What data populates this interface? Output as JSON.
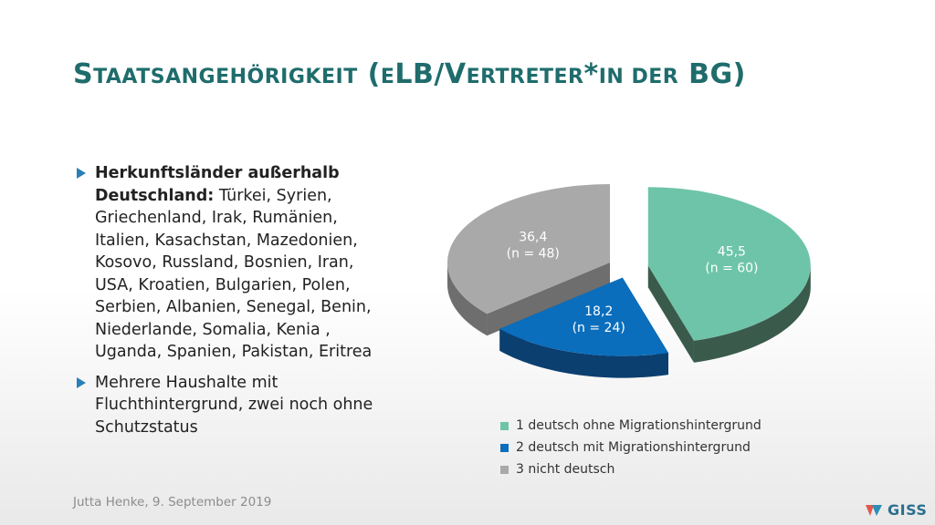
{
  "slide": {
    "title_parts": [
      {
        "text": "S",
        "small": false
      },
      {
        "text": "TAATSANGEHÖRIGKEIT",
        "small": true
      },
      {
        "text": " (",
        "small": false
      },
      {
        "text": "E",
        "small": true
      },
      {
        "text": "LB/V",
        "small": false
      },
      {
        "text": "ERTRETER",
        "small": true
      },
      {
        "text": "*",
        "small": false
      },
      {
        "text": "IN DER",
        "small": true
      },
      {
        "text": " BG)",
        "small": false
      }
    ],
    "bullets": [
      {
        "bold": "Herkunftsländer außerhalb Deutschland:",
        "text": " Türkei, Syrien, Griechenland, Irak, Rumänien, Italien, Kasachstan, Mazedonien, Kosovo, Russland, Bosnien, Iran, USA, Kroatien, Bulgarien, Polen, Serbien, Albanien, Senegal, Benin, Niederlande, Somalia, Kenia , Uganda, Spanien, Pakistan, Eritrea"
      },
      {
        "bold": "",
        "text": "Mehrere Haushalte mit Fluchthintergrund, zwei noch ohne Schutzstatus"
      }
    ],
    "footer": "Jutta Henke, 9. September 2019",
    "logo_text": "GISS"
  },
  "chart_data": {
    "type": "pie",
    "style": "3d-exploded",
    "title": "",
    "legend_position": "bottom",
    "categories": [
      "1 deutsch ohne Migrationshintergrund",
      "2 deutsch mit Migrationshintergrund",
      "3 nicht deutsch"
    ],
    "values": [
      45.5,
      18.2,
      36.4
    ],
    "counts": [
      "(n = 60)",
      "(n = 24)",
      "(n = 48)"
    ],
    "value_labels": [
      "45,5",
      "18,2",
      "36,4"
    ],
    "colors": [
      "#6ec4a8",
      "#0a6ebd",
      "#a9a9a9"
    ],
    "side_colors": [
      "#3a5a4c",
      "#0b3f70",
      "#6e6e6e"
    ],
    "label_colors": [
      "#ffffff",
      "#ffffff",
      "#ffffff"
    ]
  }
}
